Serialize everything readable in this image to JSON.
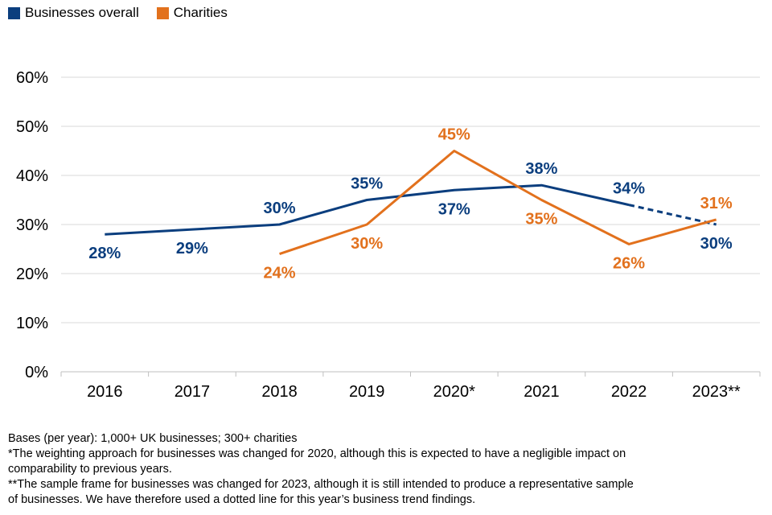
{
  "legend": {
    "items": [
      {
        "label": "Businesses overall",
        "color": "#0B3E7E"
      },
      {
        "label": "Charities",
        "color": "#E2711D"
      }
    ]
  },
  "chart_data": {
    "type": "line",
    "title": "",
    "xlabel": "",
    "ylabel": "",
    "categories": [
      "2016",
      "2017",
      "2018",
      "2019",
      "2020*",
      "2021",
      "2022",
      "2023**"
    ],
    "ylim": [
      0,
      60
    ],
    "yticks": [
      0,
      10,
      20,
      30,
      40,
      50,
      60
    ],
    "ytick_labels": [
      "0%",
      "10%",
      "20%",
      "30%",
      "40%",
      "50%",
      "60%"
    ],
    "grid": true,
    "legend_position": "top-left",
    "series": [
      {
        "name": "Businesses overall",
        "color": "#0B3E7E",
        "values": [
          28,
          29,
          30,
          35,
          37,
          38,
          34,
          30
        ],
        "labels": [
          "28%",
          "29%",
          "30%",
          "35%",
          "37%",
          "38%",
          "34%",
          "30%"
        ],
        "dashed_last_segment": true
      },
      {
        "name": "Charities",
        "color": "#E2711D",
        "values": [
          null,
          null,
          24,
          30,
          45,
          35,
          26,
          31
        ],
        "labels": [
          "",
          "",
          "24%",
          "30%",
          "45%",
          "35%",
          "26%",
          "31%"
        ],
        "dashed_last_segment": false
      }
    ]
  },
  "notes": [
    "Bases (per year): 1,000+ UK businesses; 300+ charities",
    "*The weighting approach for businesses was changed for 2020, although this is expected to have a negligible impact on",
    "comparability to previous years.",
    "**The sample frame for businesses was changed for 2023, although it is still intended to produce a representative sample",
    "of businesses. We have therefore used a dotted line for this year’s business trend findings."
  ]
}
